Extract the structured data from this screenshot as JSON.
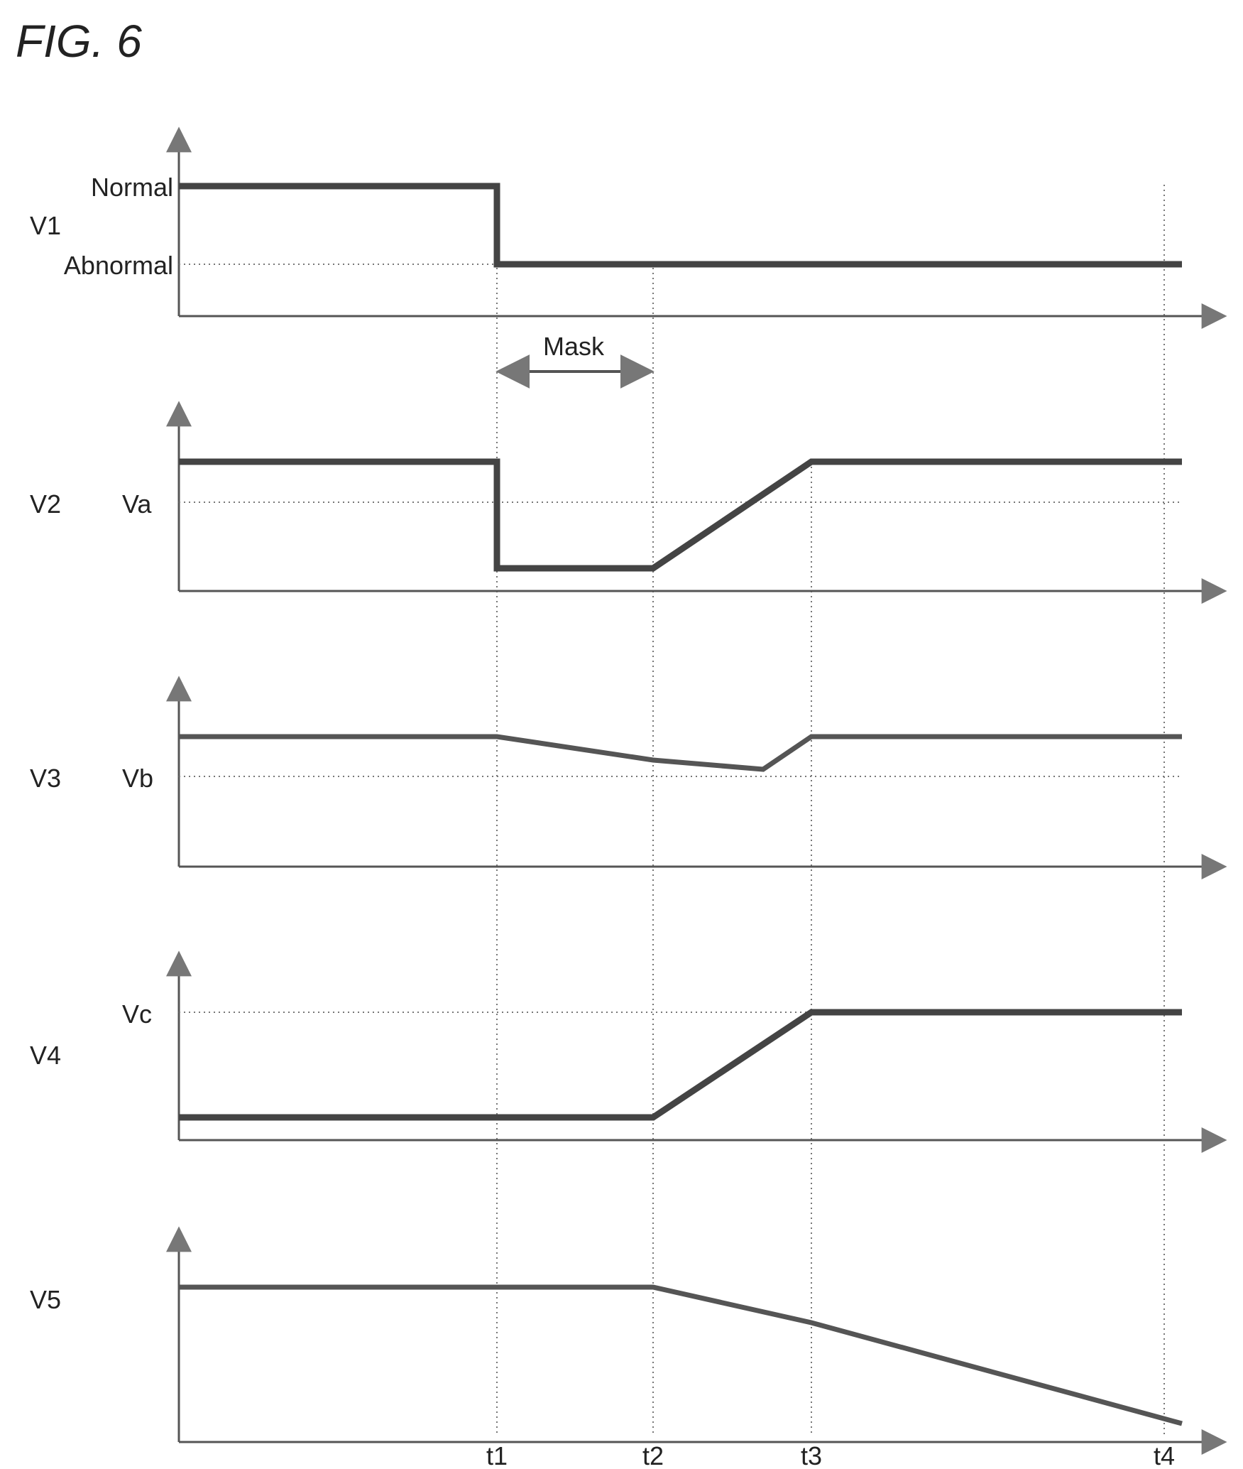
{
  "figure": {
    "title": "FIG. 6",
    "ink_color": "#333333",
    "trace_color": "#555555",
    "guide_color": "#777777"
  },
  "time_labels": {
    "t1": "t1",
    "t2": "t2",
    "t3": "t3",
    "t4": "t4"
  },
  "mask": {
    "label": "Mask",
    "from": "t1",
    "to": "t2"
  },
  "panels": [
    {
      "id": "v1",
      "name": "V1",
      "levels": [
        {
          "key": "normal",
          "label": "Normal"
        },
        {
          "key": "abnormal",
          "label": "Abnormal"
        }
      ],
      "waveform": "Normal until t1, drops to Abnormal at t1 and stays Abnormal through t4"
    },
    {
      "id": "v2",
      "name": "V2",
      "levels": [
        {
          "key": "va",
          "label": "Va"
        }
      ],
      "waveform": "High above Va until t1, drops below Va until t2, ramps up to above Va by t3, then constant"
    },
    {
      "id": "v3",
      "name": "V3",
      "levels": [
        {
          "key": "vb",
          "label": "Vb"
        }
      ],
      "waveform": "Constant above Vb until t1, decreases slowly toward Vb past t2, rises back by t3, then constant"
    },
    {
      "id": "v4",
      "name": "V4",
      "levels": [
        {
          "key": "vc",
          "label": "Vc"
        }
      ],
      "waveform": "Low until t2, ramps up to Vc by t3, then constant at Vc"
    },
    {
      "id": "v5",
      "name": "V5",
      "levels": [],
      "waveform": "Constant until t2, then decreases linearly until t4"
    }
  ]
}
